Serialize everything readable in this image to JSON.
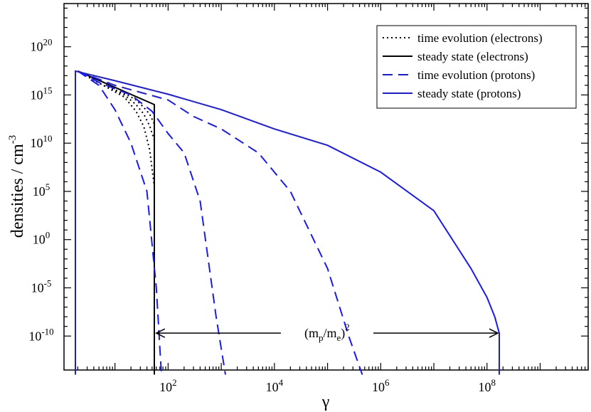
{
  "chart_data": {
    "type": "line",
    "xlabel": "γ",
    "ylabel": "densities / cm",
    "ylabel_exponent": "-3",
    "x_scale": "log",
    "y_scale": "log",
    "xlim": [
      1.1,
      8000000000.0
    ],
    "ylim": [
      3e-14,
      3e+24
    ],
    "grid": false,
    "legend_position": "top-right",
    "x_ticks": [
      {
        "value": 100,
        "base": "10",
        "exp": "2"
      },
      {
        "value": 10000,
        "base": "10",
        "exp": "4"
      },
      {
        "value": 1000000,
        "base": "10",
        "exp": "6"
      },
      {
        "value": 100000000,
        "base": "10",
        "exp": "8"
      }
    ],
    "y_ticks": [
      {
        "value": 1e-10,
        "base": "10",
        "exp": "-10"
      },
      {
        "value": 1e-05,
        "base": "10",
        "exp": "-5"
      },
      {
        "value": 1,
        "base": "10",
        "exp": "0"
      },
      {
        "value": 100000.0,
        "base": "10",
        "exp": "5"
      },
      {
        "value": 10000000000.0,
        "base": "10",
        "exp": "10"
      },
      {
        "value": 1000000000000000.0,
        "base": "10",
        "exp": "15"
      },
      {
        "value": 1e+20,
        "base": "10",
        "exp": "20"
      }
    ],
    "legend": [
      {
        "label": "time evolution (electrons)",
        "color": "#000000",
        "dash": "dotted"
      },
      {
        "label": "steady state (electrons)",
        "color": "#000000",
        "dash": "solid"
      },
      {
        "label": "time evolution (protons)",
        "color": "#1a1aee",
        "dash": "dashed"
      },
      {
        "label": "steady  state (protons)",
        "color": "#1a1aee",
        "dash": "solid"
      }
    ],
    "annotation": {
      "text_main": "(m",
      "sub_p": "p",
      "slash": "/m",
      "sub_e": "e",
      "close": ")",
      "sup": "2",
      "x_from": 60,
      "x_to": 160000000,
      "y": 2e-10
    },
    "series": [
      {
        "name": "time evolution (electrons)",
        "color": "#000000",
        "dash": "dotted",
        "points": [
          [
            2,
            3e+17
          ],
          [
            6,
            1e+16
          ],
          [
            15,
            1500000000000000.0
          ],
          [
            25,
            300000000000000.0
          ],
          [
            35,
            50000000000000.0
          ],
          [
            45,
            10000000000000.0
          ],
          [
            55,
            1000000000000.0
          ]
        ]
      },
      {
        "name": "time evolution (electrons)",
        "color": "#000000",
        "dash": "dotted",
        "points": [
          [
            2,
            3e+17
          ],
          [
            6,
            1e+16
          ],
          [
            15,
            1000000000000000.0
          ],
          [
            25,
            100000000000000.0
          ],
          [
            35,
            10000000000000.0
          ],
          [
            45,
            600000000000.0
          ],
          [
            55,
            20000000000.0
          ]
        ]
      },
      {
        "name": "time evolution (electrons)",
        "color": "#000000",
        "dash": "dotted",
        "points": [
          [
            2,
            3e+17
          ],
          [
            6,
            1e+16
          ],
          [
            15,
            600000000000000.0
          ],
          [
            25,
            20000000000000.0
          ],
          [
            35,
            500000000000.0
          ],
          [
            45,
            2000000000.0
          ],
          [
            55,
            300000.0
          ]
        ]
      },
      {
        "name": "steady state (electrons)",
        "color": "#000000",
        "dash": "solid",
        "points": [
          [
            2,
            3e+17
          ],
          [
            55,
            100000000000000.0
          ],
          [
            55,
            1e-14
          ]
        ]
      },
      {
        "name": "time evolution (protons)",
        "color": "#1a1aee",
        "dash": "dashed",
        "points": [
          [
            2,
            3e+17
          ],
          [
            5,
            1e+16
          ],
          [
            10,
            30000000000000.0
          ],
          [
            20,
            10000000000.0
          ],
          [
            40,
            100000.0
          ],
          [
            60,
            1e-05
          ],
          [
            75,
            1e-14
          ]
        ]
      },
      {
        "name": "time evolution (protons)",
        "color": "#1a1aee",
        "dash": "dashed",
        "points": [
          [
            2,
            3e+17
          ],
          [
            5,
            2e+16
          ],
          [
            20,
            1000000000000000.0
          ],
          [
            50,
            20000000000000.0
          ],
          [
            100,
            100000000000.0
          ],
          [
            200,
            1000000000.0
          ],
          [
            400,
            10000.0
          ],
          [
            800,
            1e-08
          ],
          [
            1200,
            1e-14
          ]
        ]
      },
      {
        "name": "time evolution (protons)",
        "color": "#1a1aee",
        "dash": "dashed",
        "points": [
          [
            2,
            3e+17
          ],
          [
            10,
            1e+16
          ],
          [
            100,
            300000000000000.0
          ],
          [
            300,
            6000000000000.0
          ],
          [
            1000,
            300000000000.0
          ],
          [
            5000,
            1000000000.0
          ],
          [
            20000,
            100000.0
          ],
          [
            100000,
            0.001
          ],
          [
            250000,
            1e-10
          ],
          [
            450000,
            1e-14
          ]
        ]
      },
      {
        "name": "steady  state (protons)",
        "color": "#1a1aee",
        "dash": "solid",
        "points": [
          [
            1.8,
            1e-14
          ],
          [
            1.8,
            3e+17
          ],
          [
            10,
            3e+16
          ],
          [
            100,
            1200000000000000.0
          ],
          [
            1000,
            30000000000000.0
          ],
          [
            10000,
            300000000000.0
          ],
          [
            100000,
            6000000000.0
          ],
          [
            1000000,
            10000000.0
          ],
          [
            10000000,
            1000.0
          ],
          [
            50000000,
            0.001
          ],
          [
            100000000,
            1e-06
          ],
          [
            140000000,
            1e-08
          ],
          [
            170000000,
            2e-10
          ],
          [
            170000000,
            1e-14
          ]
        ]
      }
    ]
  }
}
